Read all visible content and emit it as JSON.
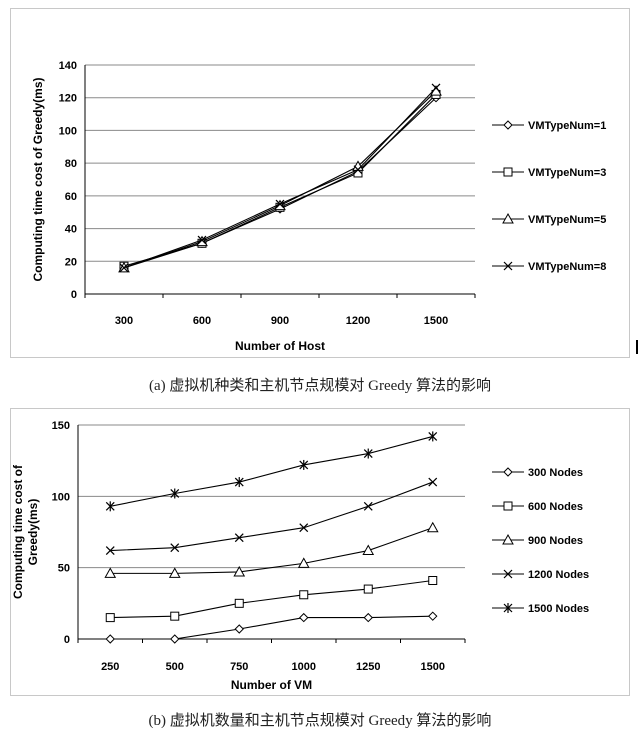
{
  "chart_data": [
    {
      "type": "line",
      "panel": "a",
      "caption": "(a)   虚拟机种类和主机节点规模对 Greedy 算法的影响",
      "xlabel": "Number of Host",
      "ylabel": "Computing time cost of Greedy(ms)",
      "categories": [
        "300",
        "600",
        "900",
        "1200",
        "1500"
      ],
      "ylim": [
        0,
        140
      ],
      "yticks": [
        0,
        20,
        40,
        60,
        80,
        100,
        120,
        140
      ],
      "grid": true,
      "legend_position": "right",
      "series": [
        {
          "name": "VMTypeNum=1",
          "marker": "diamond",
          "values": [
            16,
            31,
            52,
            75,
            120
          ]
        },
        {
          "name": "VMTypeNum=3",
          "marker": "square",
          "values": [
            17,
            31,
            53,
            74,
            122
          ]
        },
        {
          "name": "VMTypeNum=5",
          "marker": "triangle",
          "values": [
            16,
            32,
            54,
            78,
            124
          ]
        },
        {
          "name": "VMTypeNum=8",
          "marker": "x",
          "values": [
            16,
            33,
            55,
            76,
            126
          ]
        }
      ]
    },
    {
      "type": "line",
      "panel": "b",
      "caption": "(b)   虚拟机数量和主机节点规模对 Greedy 算法的影响",
      "xlabel": "Number of VM",
      "ylabel_lines": [
        "Computing time cost of",
        "Greedy(ms)"
      ],
      "categories": [
        "250",
        "500",
        "750",
        "1000",
        "1250",
        "1500"
      ],
      "ylim": [
        0,
        150
      ],
      "yticks": [
        0,
        50,
        100,
        150
      ],
      "ytick_labels": [
        "0",
        "50",
        "100",
        "150"
      ],
      "grid": true,
      "legend_position": "right",
      "series": [
        {
          "name": "300 Nodes",
          "marker": "diamond",
          "values": [
            0,
            0,
            7,
            15,
            15,
            16
          ]
        },
        {
          "name": "600 Nodes",
          "marker": "square",
          "values": [
            15,
            16,
            25,
            31,
            35,
            41
          ]
        },
        {
          "name": "900 Nodes",
          "marker": "triangle",
          "values": [
            46,
            46,
            47,
            53,
            62,
            78
          ]
        },
        {
          "name": "1200 Nodes",
          "marker": "x",
          "values": [
            62,
            64,
            71,
            78,
            93,
            110
          ]
        },
        {
          "name": "1500 Nodes",
          "marker": "star",
          "values": [
            93,
            102,
            110,
            122,
            130,
            142
          ]
        }
      ]
    }
  ]
}
